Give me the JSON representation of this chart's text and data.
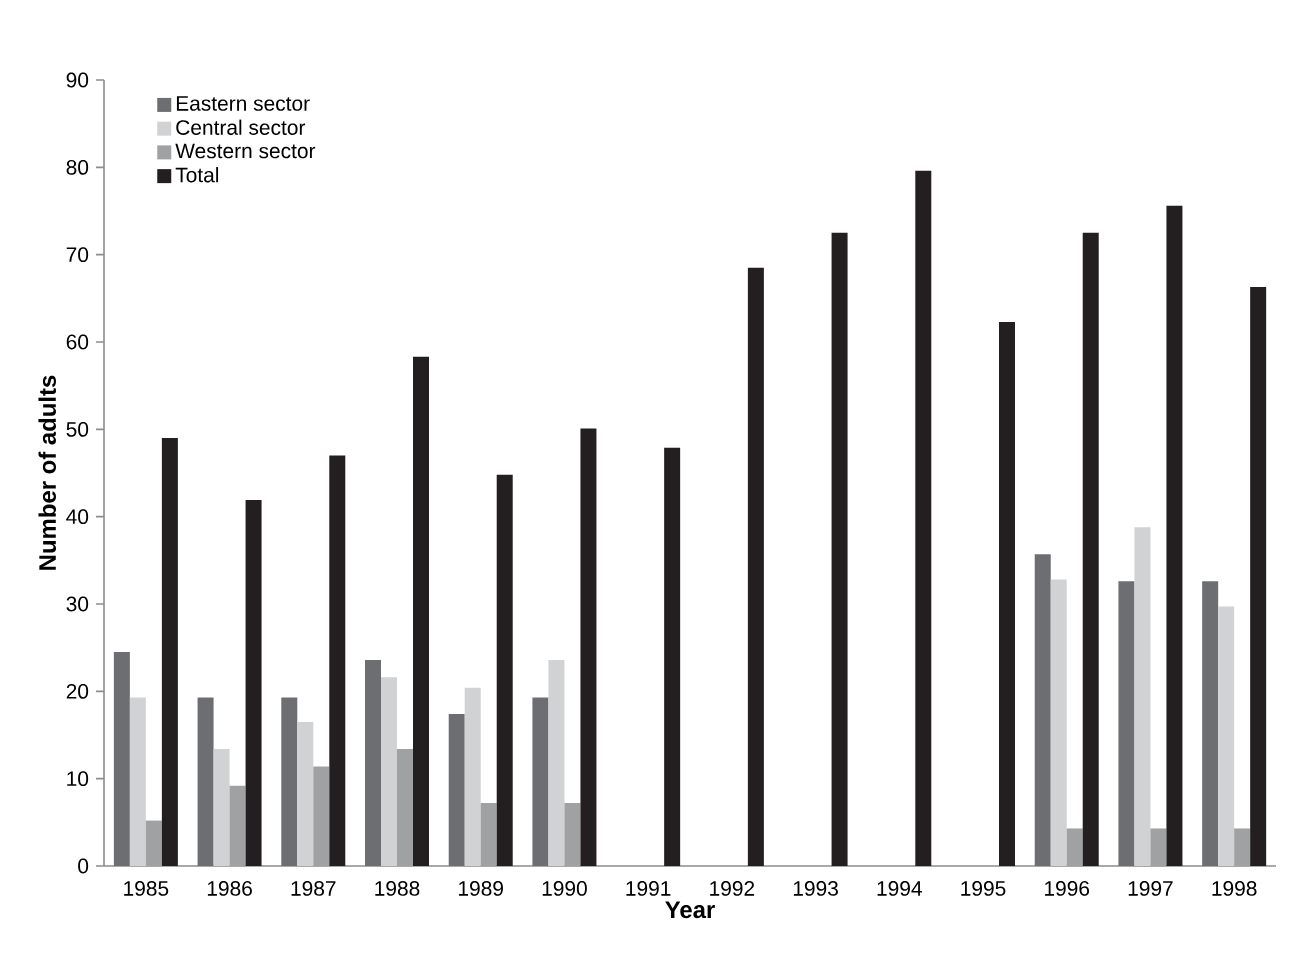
{
  "chart_data": {
    "type": "bar",
    "xlabel": "Year",
    "ylabel": "Number of adults",
    "categories": [
      "1985",
      "1986",
      "1987",
      "1988",
      "1989",
      "1990",
      "1991",
      "1992",
      "1993",
      "1994",
      "1995",
      "1996",
      "1997",
      "1998"
    ],
    "series": [
      {
        "name": "Eastern sector",
        "color": "#6d6e71",
        "values": [
          24.5,
          19.3,
          19.3,
          23.6,
          17.4,
          19.3,
          null,
          null,
          null,
          null,
          null,
          35.7,
          32.6,
          32.6
        ]
      },
      {
        "name": "Central sector",
        "color": "#d1d2d4",
        "values": [
          19.3,
          13.4,
          16.5,
          21.6,
          20.4,
          23.6,
          null,
          null,
          null,
          null,
          null,
          32.8,
          38.8,
          29.7
        ]
      },
      {
        "name": "Western sector",
        "color": "#a0a1a3",
        "values": [
          5.2,
          9.2,
          11.4,
          13.4,
          7.2,
          7.2,
          null,
          null,
          null,
          null,
          null,
          4.3,
          4.3,
          4.3
        ]
      },
      {
        "name": "Total",
        "color": "#231f20",
        "values": [
          49,
          41.9,
          47,
          58.3,
          44.8,
          50.1,
          47.9,
          68.5,
          72.5,
          79.6,
          62.3,
          72.5,
          75.6,
          66.3
        ]
      }
    ],
    "ylim": [
      0,
      90
    ],
    "yticks": [
      0,
      10,
      20,
      30,
      40,
      50,
      60,
      70,
      80,
      90
    ],
    "legend": "top left"
  }
}
